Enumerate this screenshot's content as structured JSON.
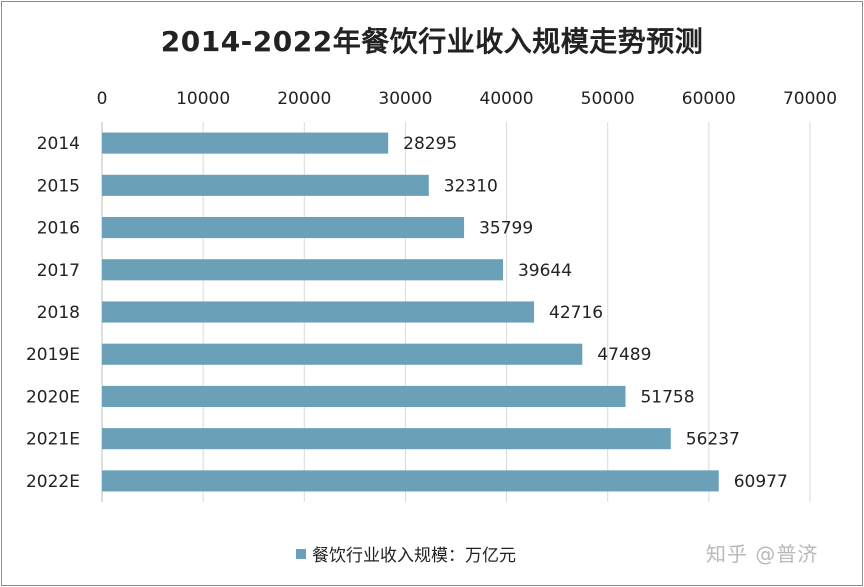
{
  "chart_data": {
    "type": "bar",
    "orientation": "horizontal",
    "title": "2014-2022年餐饮行业收入规模走势预测",
    "categories": [
      "2014",
      "2015",
      "2016",
      "2017",
      "2018",
      "2019E",
      "2020E",
      "2021E",
      "2022E"
    ],
    "series": [
      {
        "name": "餐饮行业收入规模：万亿元",
        "values": [
          28295,
          32310,
          35799,
          39644,
          42716,
          47489,
          51758,
          56237,
          60977
        ],
        "color": "#6aa1b8"
      }
    ],
    "x_ticks": [
      "0",
      "10000",
      "20000",
      "30000",
      "40000",
      "50000",
      "60000",
      "70000"
    ],
    "xlim": [
      0,
      70000
    ],
    "x_axis_position": "top",
    "grid": true,
    "legend_position": "bottom",
    "data_labels": true
  },
  "watermark": "知乎 @普济"
}
